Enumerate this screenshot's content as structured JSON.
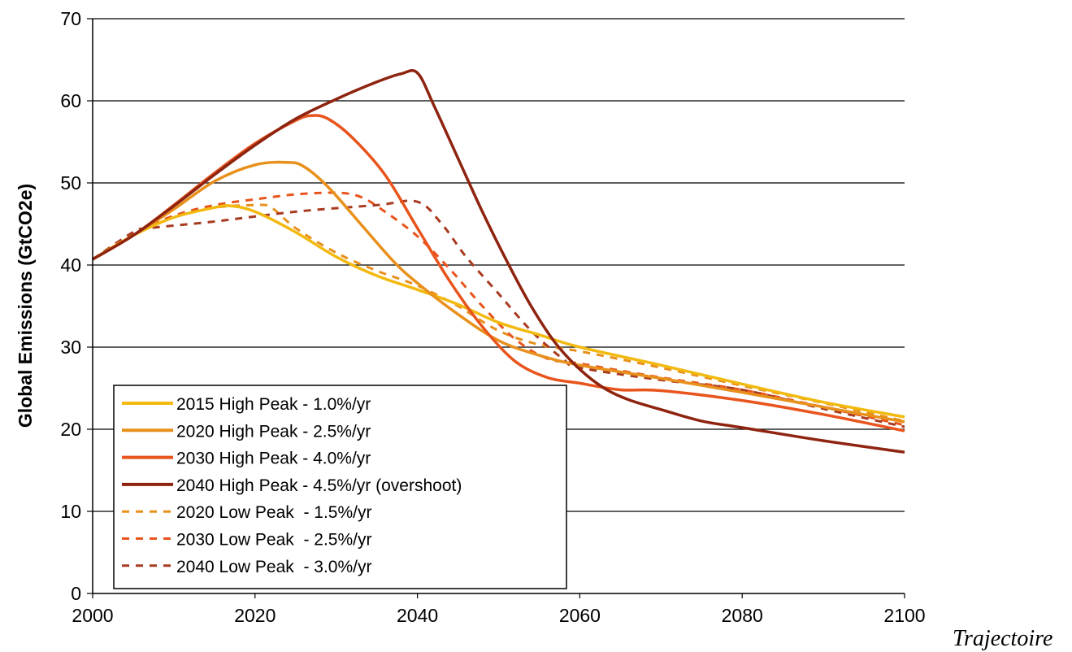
{
  "caption": "Trajectoire",
  "chart_data": {
    "type": "line",
    "title": "",
    "xlabel": "",
    "ylabel": "Global Emissions (GtCO2e)",
    "xlim": [
      2000,
      2100
    ],
    "ylim": [
      0,
      70
    ],
    "xticks": [
      2000,
      2020,
      2040,
      2060,
      2080,
      2100
    ],
    "yticks": [
      0,
      10,
      20,
      30,
      40,
      50,
      60,
      70
    ],
    "grid": "horizontal",
    "legend_position": "bottom-left",
    "series": [
      {
        "name": "2015 High Peak - 1.0%/yr",
        "color": "#f2b90f",
        "dash": "solid",
        "points": [
          [
            2000,
            40.7
          ],
          [
            2005,
            43.6
          ],
          [
            2010,
            45.8
          ],
          [
            2015,
            47.0
          ],
          [
            2017,
            47.2
          ],
          [
            2020,
            46.5
          ],
          [
            2025,
            44.0
          ],
          [
            2030,
            41.0
          ],
          [
            2035,
            38.7
          ],
          [
            2040,
            37.0
          ],
          [
            2045,
            35.2
          ],
          [
            2050,
            33.0
          ],
          [
            2055,
            31.5
          ],
          [
            2060,
            30.0
          ],
          [
            2070,
            27.8
          ],
          [
            2080,
            25.5
          ],
          [
            2090,
            23.3
          ],
          [
            2100,
            21.5
          ]
        ]
      },
      {
        "name": "2020 High Peak - 2.5%/yr",
        "color": "#e8901c",
        "dash": "solid",
        "points": [
          [
            2000,
            40.7
          ],
          [
            2005,
            43.6
          ],
          [
            2010,
            46.8
          ],
          [
            2015,
            50.2
          ],
          [
            2020,
            52.2
          ],
          [
            2024,
            52.5
          ],
          [
            2026,
            52.0
          ],
          [
            2029,
            49.5
          ],
          [
            2033,
            45.0
          ],
          [
            2037,
            40.5
          ],
          [
            2040,
            37.8
          ],
          [
            2045,
            34.0
          ],
          [
            2050,
            30.8
          ],
          [
            2055,
            29.0
          ],
          [
            2060,
            27.8
          ],
          [
            2070,
            26.2
          ],
          [
            2080,
            24.5
          ],
          [
            2090,
            22.7
          ],
          [
            2100,
            20.9
          ]
        ]
      },
      {
        "name": "2030 High Peak - 4.0%/yr",
        "color": "#e8541c",
        "dash": "solid",
        "points": [
          [
            2000,
            40.7
          ],
          [
            2005,
            43.6
          ],
          [
            2010,
            47.3
          ],
          [
            2015,
            51.2
          ],
          [
            2020,
            54.8
          ],
          [
            2025,
            57.6
          ],
          [
            2027,
            58.2
          ],
          [
            2029,
            57.8
          ],
          [
            2032,
            55.5
          ],
          [
            2036,
            51.0
          ],
          [
            2040,
            44.5
          ],
          [
            2044,
            38.0
          ],
          [
            2048,
            32.5
          ],
          [
            2052,
            28.3
          ],
          [
            2056,
            26.3
          ],
          [
            2060,
            25.6
          ],
          [
            2065,
            24.8
          ],
          [
            2070,
            24.7
          ],
          [
            2080,
            23.5
          ],
          [
            2090,
            21.8
          ],
          [
            2100,
            19.8
          ]
        ]
      },
      {
        "name": "2040 High Peak - 4.5%/yr (overshoot)",
        "color": "#8e2410",
        "dash": "solid",
        "points": [
          [
            2000,
            40.7
          ],
          [
            2005,
            43.6
          ],
          [
            2010,
            47.2
          ],
          [
            2015,
            51.0
          ],
          [
            2020,
            54.6
          ],
          [
            2025,
            57.8
          ],
          [
            2030,
            60.2
          ],
          [
            2035,
            62.3
          ],
          [
            2038,
            63.3
          ],
          [
            2040,
            63.4
          ],
          [
            2042,
            59.5
          ],
          [
            2045,
            53.0
          ],
          [
            2048,
            46.5
          ],
          [
            2051,
            40.5
          ],
          [
            2054,
            35.0
          ],
          [
            2057,
            30.5
          ],
          [
            2060,
            27.3
          ],
          [
            2063,
            25.0
          ],
          [
            2066,
            23.6
          ],
          [
            2070,
            22.4
          ],
          [
            2075,
            21.0
          ],
          [
            2080,
            20.2
          ],
          [
            2090,
            18.6
          ],
          [
            2100,
            17.2
          ]
        ]
      },
      {
        "name": "2020 Low Peak  - 1.5%/yr",
        "color": "#e8901c",
        "dash": "dashed",
        "points": [
          [
            2000,
            40.7
          ],
          [
            2005,
            43.8
          ],
          [
            2010,
            46.0
          ],
          [
            2015,
            47.0
          ],
          [
            2020,
            47.3
          ],
          [
            2022,
            47.0
          ],
          [
            2025,
            44.5
          ],
          [
            2030,
            41.5
          ],
          [
            2035,
            39.3
          ],
          [
            2040,
            37.5
          ],
          [
            2045,
            35.0
          ],
          [
            2050,
            32.0
          ],
          [
            2055,
            30.3
          ],
          [
            2060,
            29.5
          ],
          [
            2070,
            27.5
          ],
          [
            2080,
            25.3
          ],
          [
            2090,
            23.2
          ],
          [
            2100,
            21.0
          ]
        ]
      },
      {
        "name": "2030 Low Peak  - 2.5%/yr",
        "color": "#e8541c",
        "dash": "dashed",
        "points": [
          [
            2000,
            40.7
          ],
          [
            2005,
            43.8
          ],
          [
            2010,
            46.0
          ],
          [
            2015,
            47.3
          ],
          [
            2020,
            48.0
          ],
          [
            2025,
            48.6
          ],
          [
            2030,
            48.8
          ],
          [
            2033,
            48.3
          ],
          [
            2036,
            46.5
          ],
          [
            2040,
            43.5
          ],
          [
            2044,
            39.5
          ],
          [
            2048,
            35.0
          ],
          [
            2052,
            31.0
          ],
          [
            2056,
            28.6
          ],
          [
            2060,
            28.0
          ],
          [
            2070,
            26.3
          ],
          [
            2080,
            24.8
          ],
          [
            2090,
            22.7
          ],
          [
            2100,
            20.5
          ]
        ]
      },
      {
        "name": "2040 Low Peak  - 3.0%/yr",
        "color": "#a83a20",
        "dash": "dashed",
        "points": [
          [
            2000,
            40.7
          ],
          [
            2005,
            44.0
          ],
          [
            2007,
            44.5
          ],
          [
            2015,
            45.3
          ],
          [
            2025,
            46.5
          ],
          [
            2035,
            47.3
          ],
          [
            2040,
            47.7
          ],
          [
            2043,
            45.0
          ],
          [
            2046,
            41.0
          ],
          [
            2050,
            36.5
          ],
          [
            2054,
            32.0
          ],
          [
            2058,
            28.5
          ],
          [
            2060,
            27.5
          ],
          [
            2070,
            26.0
          ],
          [
            2080,
            24.8
          ],
          [
            2090,
            22.5
          ],
          [
            2100,
            20.3
          ]
        ]
      }
    ]
  }
}
